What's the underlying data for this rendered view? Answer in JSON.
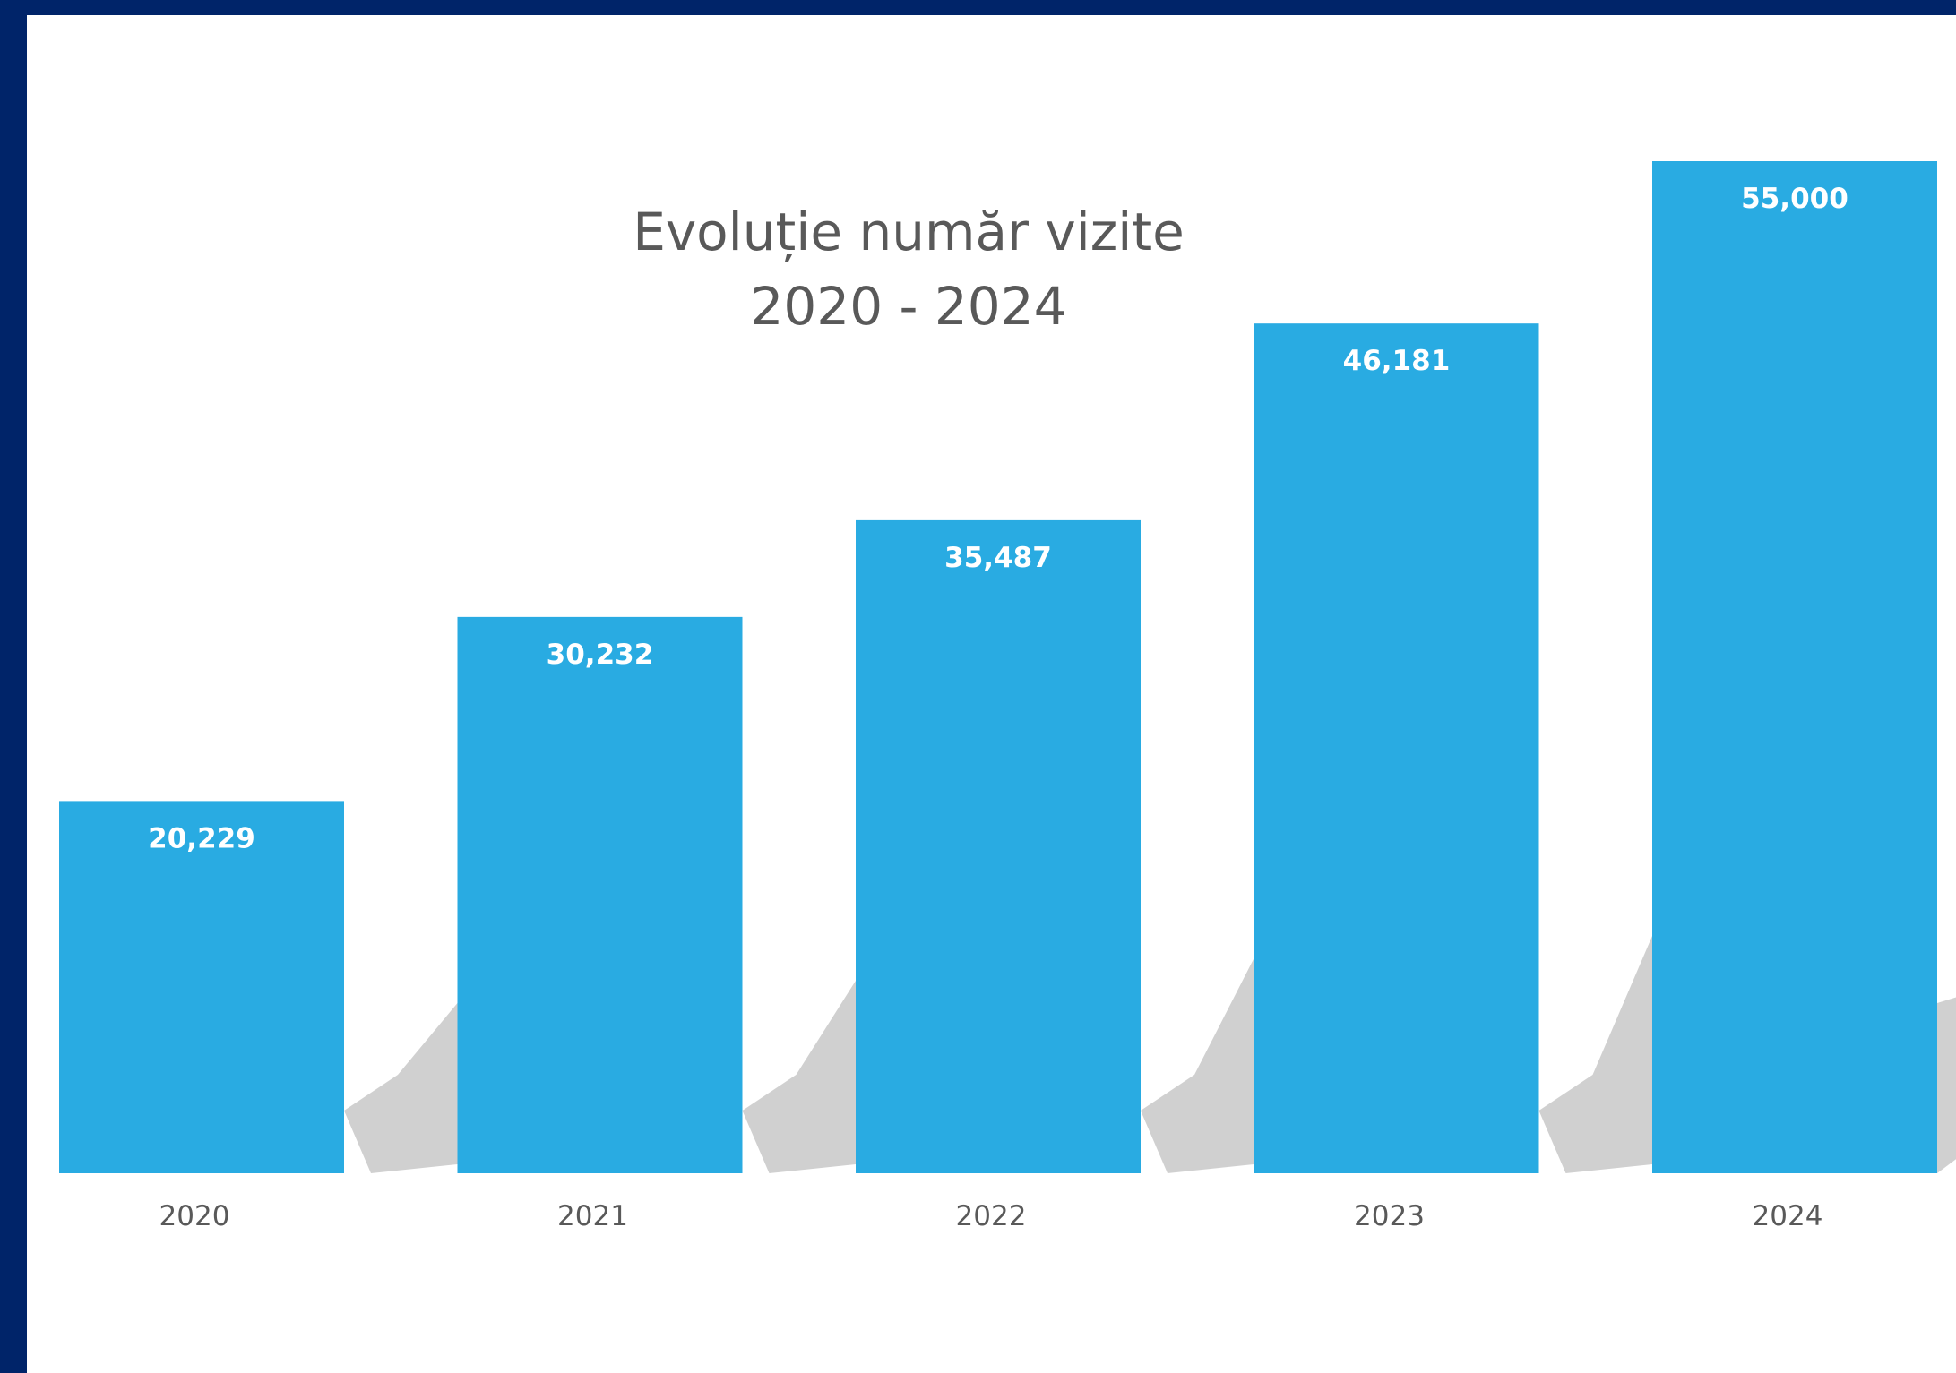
{
  "chart_data": {
    "type": "bar",
    "title": "Evoluție număr vizite",
    "subtitle": "2020 - 2024",
    "categories": [
      "2020",
      "2021",
      "2022",
      "2023",
      "2024"
    ],
    "values": [
      20229,
      30232,
      35487,
      46181,
      55000
    ],
    "value_labels": [
      "20,229",
      "30,232",
      "35,487",
      "46,181",
      "55,000"
    ],
    "xlabel": "",
    "ylabel": "",
    "ylim": [
      0,
      55000
    ],
    "grid": false,
    "legend": "none",
    "colors": {
      "bar": "#29ABE2",
      "shadow": "#D0D0D0",
      "frame": "#002469",
      "background": "#FFFFFF",
      "text": "#595959",
      "value_text": "#FFFFFF"
    }
  }
}
